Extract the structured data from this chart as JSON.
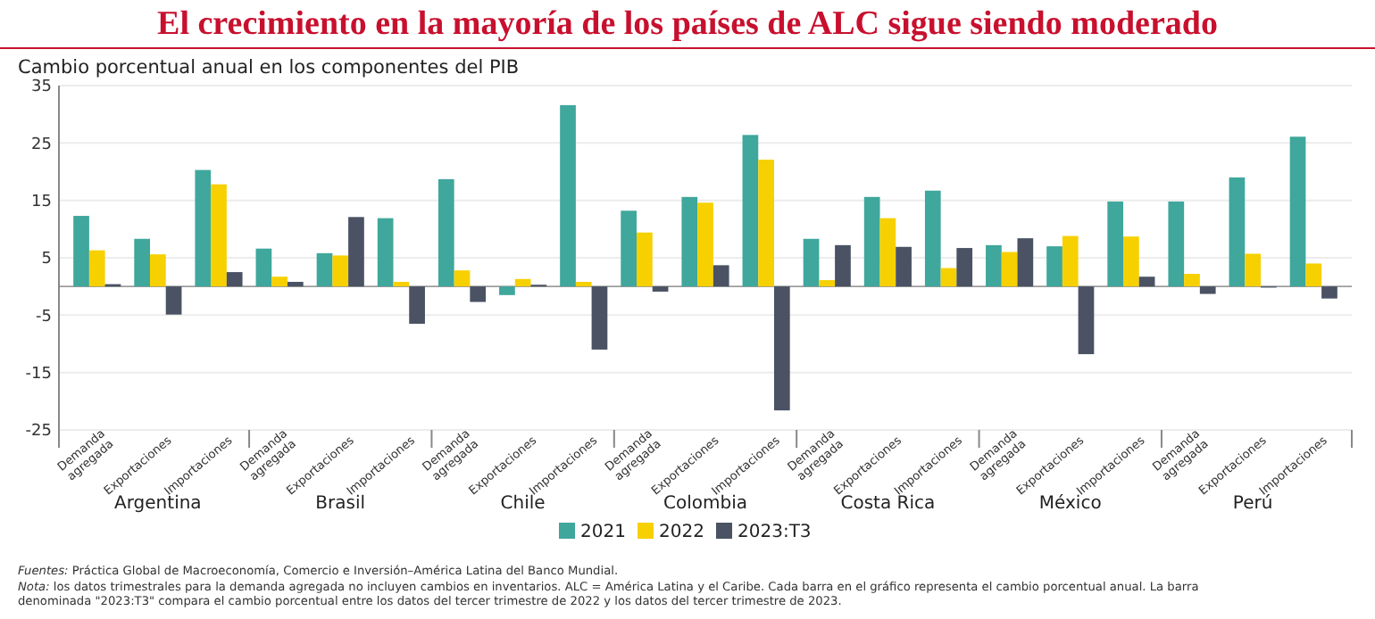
{
  "chart_data": {
    "type": "bar",
    "title": "El crecimiento en la mayoría de los países de ALC sigue siendo moderado",
    "subtitle": "Cambio porcentual anual en los componentes del PIB",
    "categories": [
      "Demanda agregada",
      "Exportaciones",
      "Importaciones",
      "Demanda agregada",
      "Exportaciones",
      "Importaciones",
      "Demanda agregada",
      "Exportaciones",
      "Importaciones",
      "Demanda agregada",
      "Exportaciones",
      "Importaciones",
      "Demanda agregada",
      "Exportaciones",
      "Importaciones",
      "Demanda agregada",
      "Exportaciones",
      "Importaciones",
      "Demanda agregada",
      "Exportaciones",
      "Importaciones"
    ],
    "series": [
      {
        "name": "2021",
        "color": "#3fa79c",
        "values": [
          12.3,
          8.3,
          20.3,
          6.6,
          5.8,
          11.9,
          18.7,
          -1.5,
          31.6,
          13.2,
          15.6,
          26.4,
          8.3,
          15.6,
          16.7,
          7.2,
          7.0,
          14.8,
          14.8,
          19.0,
          26.1
        ]
      },
      {
        "name": "2022",
        "color": "#f7d000",
        "values": [
          6.3,
          5.6,
          17.8,
          1.7,
          5.4,
          0.8,
          2.8,
          1.3,
          0.8,
          9.4,
          14.6,
          22.1,
          1.1,
          11.9,
          3.2,
          6.0,
          8.8,
          8.7,
          2.2,
          5.7,
          4.0
        ]
      },
      {
        "name": "2023:T3",
        "color": "#4a5263",
        "values": [
          0.4,
          -4.9,
          2.5,
          0.8,
          12.1,
          -6.5,
          -2.7,
          0.3,
          -11.0,
          -0.9,
          3.7,
          -21.6,
          7.2,
          6.9,
          6.7,
          8.4,
          -11.8,
          1.7,
          -1.3,
          -0.2,
          -2.1
        ]
      }
    ],
    "ylim": [
      -25,
      35
    ],
    "yticks": [
      -25,
      -15,
      -5,
      5,
      15,
      25,
      35
    ],
    "grid": "y",
    "legend": "bottom",
    "annotations": [
      "Argentina",
      "Brasil",
      "Chile",
      "Colombia",
      "Costa Rica",
      "México",
      "Perú",
      "Fuentes: Práctica Global de Macroeconomía, Comercio e Inversión–América Latina del Banco Mundial.",
      "Nota: los datos trimestrales para la demanda agregada no incluyen cambios en inventarios. ALC = América Latina y el Caribe. Cada barra en el gráfico representa el cambio porcentual anual. La barra denominada \"2023:T3\" compara el cambio porcentual entre los datos del tercer trimestre de 2022 y los datos del tercer trimestre de 2023."
    ]
  }
}
